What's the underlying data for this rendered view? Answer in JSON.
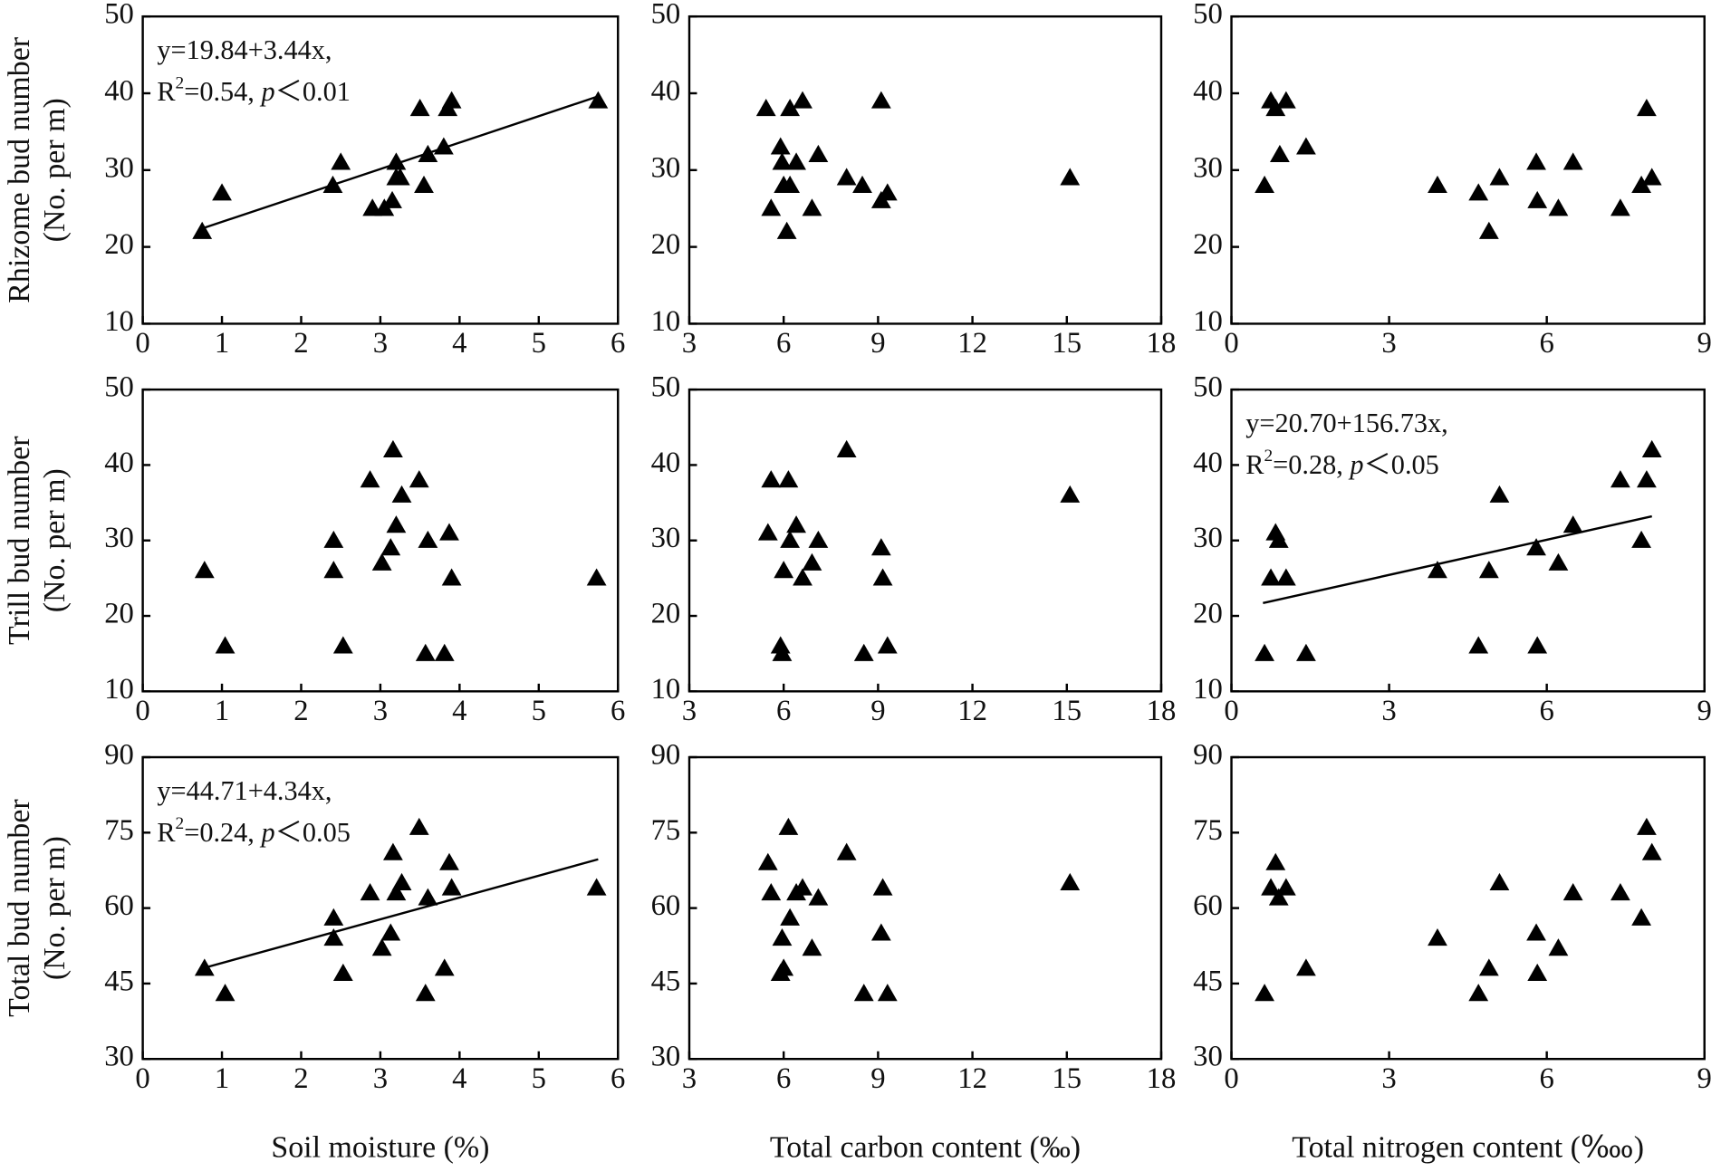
{
  "chart_data": [
    {
      "type": "scatter",
      "marker": "triangle",
      "color": "#000000",
      "ylabel": [
        "Rhizome bud number",
        "(No. per m)"
      ],
      "annotation": {
        "equation": "y=19.84+3.44x,",
        "stat": [
          "R",
          "2",
          "=0.54, ",
          "p",
          "＜0.01"
        ]
      },
      "fit": {
        "x": [
          0.75,
          5.75
        ],
        "y": [
          22.4,
          39.6
        ]
      },
      "x": [
        0.75,
        1.0,
        2.4,
        2.5,
        2.9,
        3.05,
        3.15,
        3.2,
        3.2,
        3.25,
        3.5,
        3.55,
        3.6,
        3.8,
        3.85,
        3.9,
        5.75
      ],
      "values": [
        22,
        27,
        28,
        31,
        25,
        25,
        26,
        29,
        31,
        29,
        38,
        28,
        32,
        33,
        38,
        39,
        39
      ],
      "xlim": [
        0,
        6
      ],
      "xticks": [
        0,
        1,
        2,
        3,
        4,
        5,
        6
      ],
      "ylim": [
        10,
        50
      ],
      "yticks": [
        10,
        20,
        30,
        40,
        50
      ]
    },
    {
      "type": "scatter",
      "marker": "triangle",
      "color": "#000000",
      "x": [
        5.44,
        5.6,
        5.9,
        5.95,
        6.0,
        6.1,
        6.2,
        6.2,
        6.4,
        6.6,
        6.9,
        7.1,
        8.0,
        8.5,
        9.1,
        9.1,
        9.3,
        15.1
      ],
      "values": [
        38,
        25,
        33,
        31,
        28,
        22,
        38,
        28,
        31,
        39,
        25,
        32,
        29,
        28,
        26,
        39,
        27,
        29
      ],
      "xlim": [
        3,
        18
      ],
      "xticks": [
        3,
        6,
        9,
        12,
        15,
        18
      ],
      "ylim": [
        10,
        50
      ],
      "yticks": [
        10,
        20,
        30,
        40,
        50
      ]
    },
    {
      "type": "scatter",
      "marker": "triangle",
      "color": "#000000",
      "x": [
        0.63,
        0.75,
        0.84,
        0.92,
        1.04,
        1.42,
        3.92,
        4.7,
        4.9,
        5.1,
        5.8,
        5.82,
        6.22,
        6.5,
        7.4,
        7.8,
        7.9,
        8.0
      ],
      "values": [
        28,
        39,
        38,
        32,
        39,
        33,
        28,
        27,
        22,
        29,
        31,
        26,
        25,
        31,
        25,
        28,
        38,
        29
      ],
      "xlim": [
        0,
        9
      ],
      "xticks": [
        0,
        3,
        6,
        9
      ],
      "ylim": [
        10,
        50
      ],
      "yticks": [
        10,
        20,
        30,
        40,
        50
      ]
    },
    {
      "type": "scatter",
      "marker": "triangle",
      "color": "#000000",
      "ylabel": [
        "Trill bud number",
        "(No. per m)"
      ],
      "x": [
        0.78,
        1.04,
        2.41,
        2.41,
        2.53,
        2.87,
        3.02,
        3.13,
        3.16,
        3.2,
        3.27,
        3.49,
        3.57,
        3.6,
        3.81,
        3.87,
        3.9,
        5.73
      ],
      "values": [
        26,
        16,
        30,
        26,
        16,
        38,
        27,
        29,
        42,
        32,
        36,
        38,
        15,
        30,
        15,
        31,
        25,
        25
      ],
      "xlim": [
        0,
        6
      ],
      "xticks": [
        0,
        1,
        2,
        3,
        4,
        5,
        6
      ],
      "ylim": [
        10,
        50
      ],
      "yticks": [
        10,
        20,
        30,
        40,
        50
      ]
    },
    {
      "type": "scatter",
      "marker": "triangle",
      "color": "#000000",
      "x": [
        5.5,
        5.6,
        5.9,
        5.95,
        6.0,
        6.15,
        6.2,
        6.4,
        6.6,
        6.9,
        7.1,
        8.0,
        8.55,
        9.1,
        9.15,
        9.3,
        15.1
      ],
      "values": [
        31,
        38,
        16,
        15,
        26,
        38,
        30,
        32,
        25,
        27,
        30,
        42,
        15,
        29,
        25,
        16,
        36
      ],
      "xlim": [
        3,
        18
      ],
      "xticks": [
        3,
        6,
        9,
        12,
        15,
        18
      ],
      "ylim": [
        10,
        50
      ],
      "yticks": [
        10,
        20,
        30,
        40,
        50
      ]
    },
    {
      "type": "scatter",
      "marker": "triangle",
      "color": "#000000",
      "annotation": {
        "equation": "y=20.70+156.73x,",
        "stat": [
          "R",
          "2",
          "=0.28, ",
          "p",
          "＜0.05"
        ]
      },
      "fit": {
        "x": [
          0.6,
          8.0
        ],
        "y": [
          21.7,
          33.2
        ]
      },
      "x": [
        0.63,
        0.75,
        0.84,
        0.9,
        1.04,
        1.42,
        3.92,
        4.7,
        4.9,
        5.1,
        5.8,
        5.82,
        6.22,
        6.5,
        7.4,
        7.8,
        7.9,
        8.0
      ],
      "values": [
        15,
        25,
        31,
        30,
        25,
        15,
        26,
        16,
        26,
        36,
        29,
        16,
        27,
        32,
        38,
        30,
        38,
        42
      ],
      "xlim": [
        0,
        9
      ],
      "xticks": [
        0,
        3,
        6,
        9
      ],
      "ylim": [
        10,
        50
      ],
      "yticks": [
        10,
        20,
        30,
        40,
        50
      ]
    },
    {
      "type": "scatter",
      "marker": "triangle",
      "color": "#000000",
      "ylabel": [
        "Total bud number",
        "(No. per m)"
      ],
      "xlabel": "Soil moisture  (%)",
      "annotation": {
        "equation": "y=44.71+4.34x,",
        "stat": [
          "R",
          "2",
          "=0.24, ",
          "p",
          "＜0.05"
        ]
      },
      "fit": {
        "x": [
          0.75,
          5.75
        ],
        "y": [
          48,
          69.7
        ]
      },
      "x": [
        0.78,
        1.04,
        2.41,
        2.41,
        2.53,
        2.87,
        3.02,
        3.13,
        3.16,
        3.2,
        3.27,
        3.49,
        3.57,
        3.6,
        3.81,
        3.87,
        3.9,
        5.73
      ],
      "values": [
        48,
        43,
        58,
        54,
        47,
        63,
        52,
        55,
        71,
        63,
        65,
        76,
        43,
        62,
        48,
        69,
        64,
        64
      ],
      "xlim": [
        0,
        6
      ],
      "xticks": [
        0,
        1,
        2,
        3,
        4,
        5,
        6
      ],
      "ylim": [
        30,
        90
      ],
      "yticks": [
        30,
        45,
        60,
        75,
        90
      ]
    },
    {
      "type": "scatter",
      "marker": "triangle",
      "color": "#000000",
      "xlabel": "Total carbon content (‰)",
      "x": [
        5.5,
        5.6,
        5.9,
        5.95,
        6.0,
        6.15,
        6.2,
        6.4,
        6.6,
        6.9,
        7.1,
        8.0,
        8.55,
        9.1,
        9.15,
        9.3,
        15.1
      ],
      "values": [
        69,
        63,
        47,
        54,
        48,
        76,
        58,
        63,
        64,
        52,
        62,
        71,
        43,
        55,
        64,
        43,
        65
      ],
      "xlim": [
        3,
        18
      ],
      "xticks": [
        3,
        6,
        9,
        12,
        15,
        18
      ],
      "ylim": [
        30,
        90
      ],
      "yticks": [
        30,
        45,
        60,
        75,
        90
      ]
    },
    {
      "type": "scatter",
      "marker": "triangle",
      "color": "#000000",
      "xlabel": "Total nitrogen content (‱)",
      "x": [
        0.63,
        0.75,
        0.84,
        0.9,
        1.04,
        1.42,
        3.92,
        4.7,
        4.9,
        5.1,
        5.8,
        5.82,
        6.22,
        6.5,
        7.4,
        7.8,
        7.9,
        8.0
      ],
      "values": [
        43,
        64,
        69,
        62,
        64,
        48,
        54,
        43,
        48,
        65,
        55,
        47,
        52,
        63,
        63,
        58,
        76,
        71
      ],
      "xlim": [
        0,
        9
      ],
      "xticks": [
        0,
        3,
        6,
        9
      ],
      "ylim": [
        30,
        90
      ],
      "yticks": [
        30,
        45,
        60,
        75,
        90
      ]
    }
  ]
}
